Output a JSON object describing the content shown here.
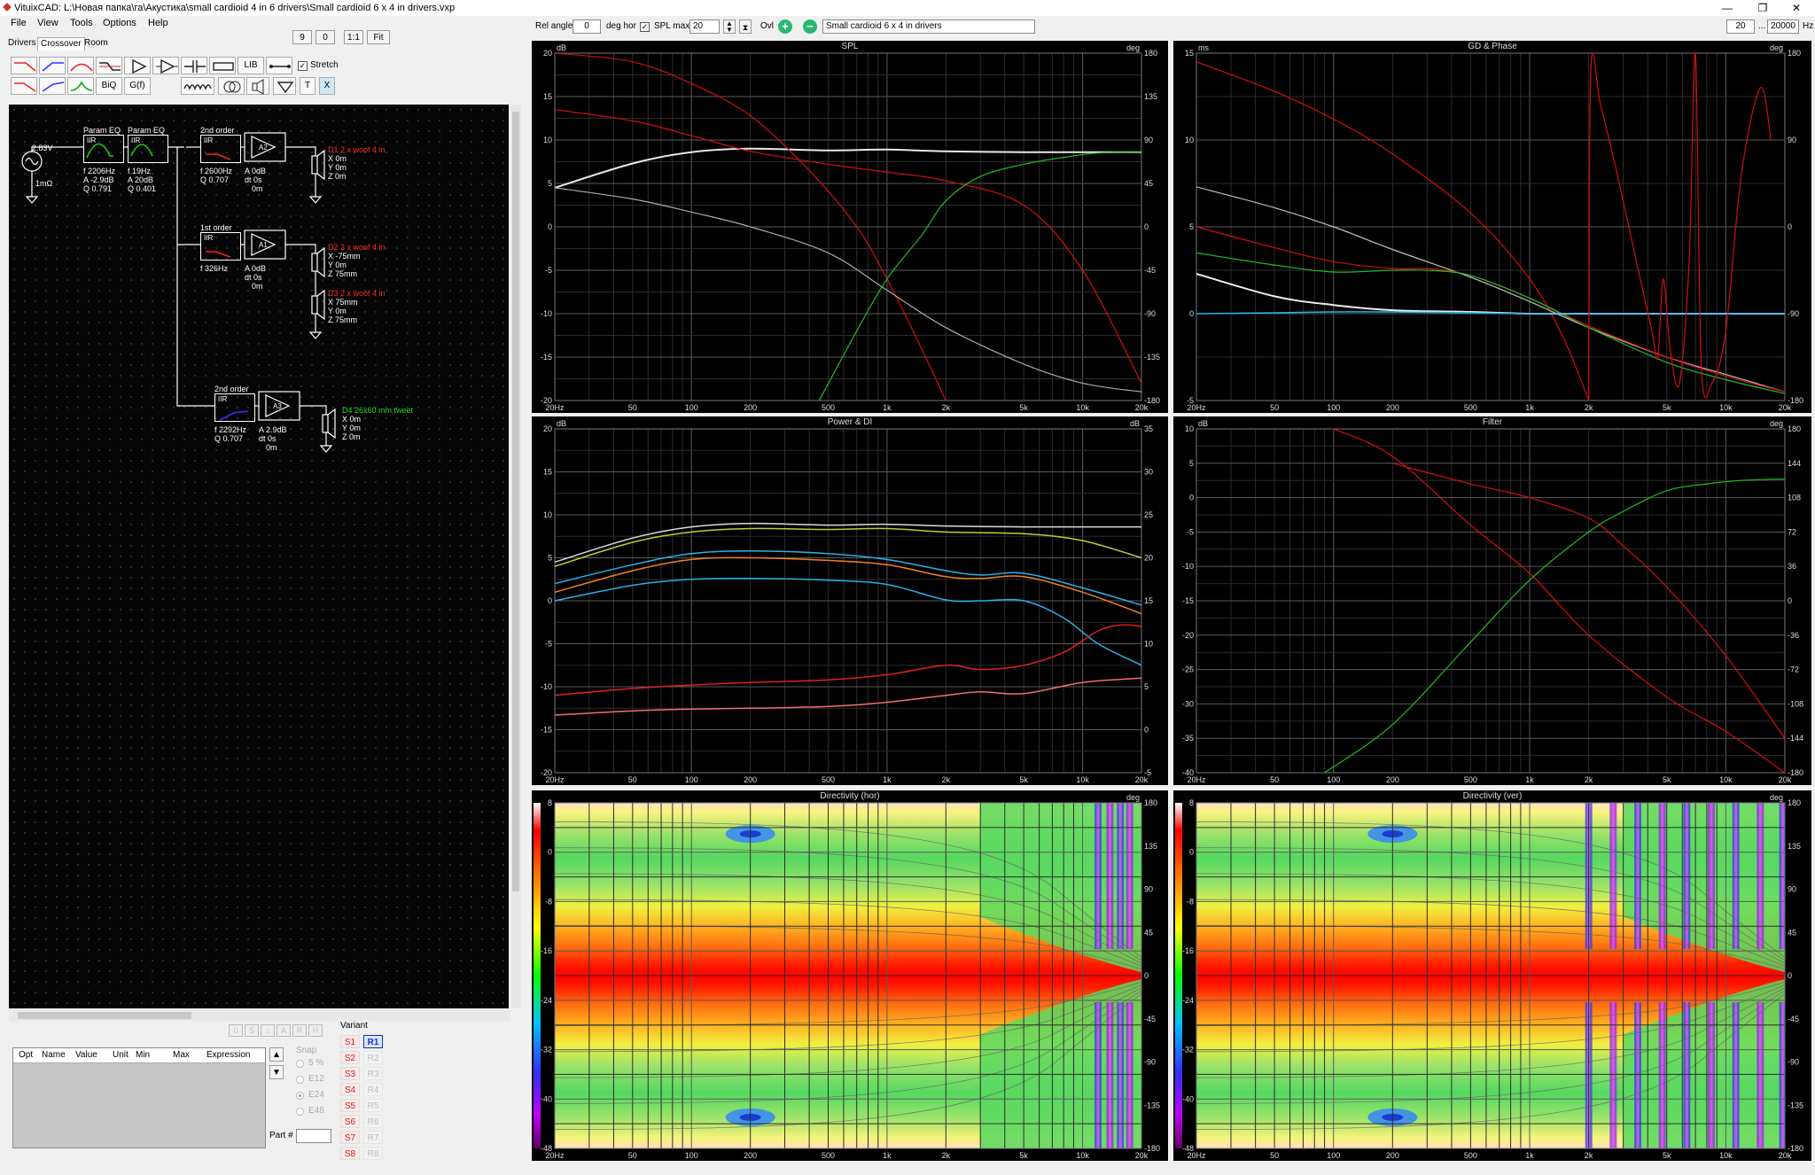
{
  "titlebar": {
    "title": "VituixCAD: L:\\Новая папка\\га\\Акустика\\small cardioid 4 in 6 drivers\\Small cardioid 6 x 4 in drivers.vxp",
    "minimize": "—",
    "restore": "❐",
    "close": "✕"
  },
  "menu": {
    "file": "File",
    "view": "View",
    "tools": "Tools",
    "options": "Options",
    "help": "Help"
  },
  "toolbar": {
    "zoom_9": "9",
    "zoom_0": "0",
    "zoom_11": "1:1",
    "zoom_fit": "Fit",
    "rel_angle_label": "Rel angle",
    "rel_angle_value": "0",
    "deg_hor_label": "deg hor",
    "spl_max_label": "SPL max",
    "spl_max_value": "20",
    "ovl_label": "Ovl",
    "overlay_name": "Small cardioid 6 x 4 in drivers",
    "freq_min": "20",
    "freq_sep": "...",
    "freq_max": "20000",
    "freq_unit": "Hz"
  },
  "tabs": [
    "Drivers",
    "Crossover",
    "Room"
  ],
  "palette": {
    "biq": "BiQ",
    "gf": "G(f)",
    "lib": "LIB",
    "t": "T",
    "x": "X",
    "stretch_label": "Stretch"
  },
  "schematic": {
    "source": {
      "voltage": "2.83V",
      "impedance": "1mΩ"
    },
    "peq1": {
      "title": "Param EQ",
      "type": "IIR",
      "f": "f   2206Hz",
      "a": "A  -2.9dB",
      "q": "Q  0.791"
    },
    "peq2": {
      "title": "Param EQ",
      "type": "IIR",
      "f": "f   19Hz",
      "a": "A  20dB",
      "q": "Q  0.401"
    },
    "filter_a": {
      "title": "2nd order",
      "type": "IIR",
      "f": "f   2600Hz",
      "q": "Q  0.707"
    },
    "amp_a": {
      "label": "A2",
      "a": "A  0dB",
      "dt": "dt 0s",
      "m": "0m"
    },
    "drv1": {
      "name": "D1 2 x woof 4 in",
      "x": "X  0m",
      "y": "Y  0m",
      "z": "Z  0m"
    },
    "filter_b": {
      "title": "1st order",
      "type": "IIR",
      "f": "f   326Hz"
    },
    "amp_b": {
      "label": "A1",
      "a": "A  0dB",
      "dt": "dt 0s",
      "m": "0m"
    },
    "drv2": {
      "name": "D2 2 x woof 4 in",
      "x": "X  -75mm",
      "y": "Y  0m",
      "z": "Z  75mm"
    },
    "drv3": {
      "name": "D3 2 x woof 4 in",
      "x": "X  75mm",
      "y": "Y  0m",
      "z": "Z  75mm"
    },
    "filter_c": {
      "title": "2nd order",
      "type": "IIR",
      "f": "f   2292Hz",
      "q": "Q  0.707"
    },
    "amp_c": {
      "label": "A3",
      "a": "A  2.9dB",
      "dt": "dt 0s",
      "m": "0m"
    },
    "drv4": {
      "name": "D4 26x60 mm tweet",
      "x": "X  0m",
      "y": "Y  0m",
      "z": "Z  0m"
    }
  },
  "opt_table": {
    "headers": [
      "Opt",
      "Name",
      "Value",
      "Unit",
      "Min",
      "Max",
      "Expression"
    ]
  },
  "opt_buttons": [
    "0",
    "S",
    "↕",
    "A",
    "R",
    "H"
  ],
  "snap": {
    "label": "Snap",
    "options": [
      "5 %",
      "E12",
      "E24",
      "E48"
    ],
    "selected": "E24"
  },
  "part_label": "Part #",
  "variant": {
    "label": "Variant",
    "s": [
      "S1",
      "S2",
      "S3",
      "S4",
      "S5",
      "S6",
      "S7",
      "S8"
    ],
    "r": [
      "R1",
      "R2",
      "R3",
      "R4",
      "R5",
      "R6",
      "R7",
      "R8"
    ],
    "active_r": "R1"
  },
  "colors": {
    "panel_bg": "#000000",
    "grid": "#3c3c3c",
    "red": "#e01010",
    "green": "#22bb22",
    "white": "#dddddd",
    "cyan": "#2ab0e8",
    "orange": "#f08020",
    "yellow_green": "#b8d030"
  },
  "freq_ticks": [
    "20Hz",
    "50",
    "100",
    "200",
    "500",
    "1k",
    "2k",
    "5k",
    "10k",
    "20k"
  ],
  "panels": [
    {
      "id": "spl",
      "title": "SPL",
      "left_unit": "dB",
      "right_unit": "deg",
      "left_ticks": [
        "20",
        "15",
        "10",
        "5",
        "0",
        "-5",
        "-10",
        "-15",
        "-20"
      ],
      "right_ticks": [
        "180",
        "135",
        "90",
        "45",
        "0",
        "-45",
        "-90",
        "-135",
        "-180"
      ],
      "y_range": [
        -20,
        20
      ],
      "series": [
        {
          "color": "#e8e8e8",
          "width": 2,
          "x": [
            20,
            50,
            100,
            200,
            500,
            1000,
            2000,
            5000,
            10000,
            20000
          ],
          "y": [
            4.5,
            7.3,
            8.6,
            9.0,
            8.8,
            8.9,
            8.7,
            8.6,
            8.6,
            8.6
          ]
        },
        {
          "color": "#d01010",
          "width": 1.2,
          "x": [
            20,
            50,
            100,
            200,
            500,
            1000,
            2000,
            5000,
            10000,
            20000
          ],
          "y": [
            13.5,
            12.2,
            10.5,
            8.7,
            7.2,
            6.3,
            5.3,
            2.5,
            -5.0,
            -18.0
          ]
        },
        {
          "color": "#d01010",
          "width": 1.2,
          "x": [
            20,
            50,
            100,
            200,
            400,
            700,
            1000,
            1500,
            2000
          ],
          "y": [
            20.0,
            19.0,
            16.5,
            12.8,
            6.5,
            0,
            -6,
            -14,
            -20
          ]
        },
        {
          "color": "#aaaaaa",
          "width": 1.2,
          "x": [
            20,
            50,
            100,
            200,
            500,
            1000,
            2000,
            5000,
            10000,
            20000
          ],
          "y": [
            4.5,
            3.2,
            1.7,
            0.0,
            -3.0,
            -7.3,
            -11.6,
            -15.8,
            -18.0,
            -19.0
          ]
        },
        {
          "color": "#22bb22",
          "width": 1.2,
          "x": [
            450,
            700,
            1000,
            1500,
            2000,
            3000,
            5000,
            8000,
            12000,
            20000
          ],
          "y": [
            -20,
            -12,
            -6,
            -1,
            3,
            5.8,
            7.2,
            8.0,
            8.5,
            8.6
          ]
        }
      ]
    },
    {
      "id": "gd",
      "title": "GD & Phase",
      "left_unit": "ms",
      "right_unit": "deg",
      "left_ticks": [
        "15",
        "10",
        "5",
        "0",
        "-5"
      ],
      "right_ticks": [
        "180",
        "90",
        "0",
        "-90",
        "-180"
      ],
      "y_range": [
        -5,
        15
      ],
      "series": [
        {
          "color": "#d01010",
          "width": 1.2,
          "x": [
            20,
            50,
            100,
            200,
            500,
            1000,
            1500,
            2000
          ],
          "y": [
            14.5,
            12.8,
            11.2,
            9.2,
            5.8,
            2.0,
            -1.5,
            -5.0
          ]
        },
        {
          "color": "#c0c0c0",
          "width": 1.2,
          "x": [
            20,
            50,
            100,
            200,
            500,
            1000,
            2000,
            5000,
            10000,
            20000
          ],
          "y": [
            7.3,
            6.1,
            5.0,
            3.7,
            2.1,
            0.7,
            -0.8,
            -2.5,
            -3.5,
            -4.5
          ]
        },
        {
          "color": "#d01010",
          "width": 1.2,
          "x": [
            20,
            50,
            100,
            200,
            300,
            500,
            1000,
            2000,
            5000,
            10000,
            20000
          ],
          "y": [
            5.0,
            3.8,
            3.0,
            2.6,
            2.6,
            2.2,
            0.9,
            -0.7,
            -2.5,
            -3.6,
            -4.5
          ]
        },
        {
          "color": "#22bb22",
          "width": 1.2,
          "x": [
            20,
            50,
            100,
            200,
            300,
            500,
            1000,
            2000,
            5000,
            10000,
            20000
          ],
          "y": [
            3.5,
            2.8,
            2.4,
            2.5,
            2.5,
            2.2,
            0.9,
            -0.8,
            -2.8,
            -3.8,
            -4.6
          ]
        },
        {
          "color": "#eeeeee",
          "width": 2,
          "x": [
            20,
            50,
            100,
            200,
            500,
            1000,
            2000,
            5000,
            10000,
            20000
          ],
          "y": [
            2.3,
            1.0,
            0.5,
            0.2,
            0.1,
            0.0,
            0.0,
            0.0,
            0.0,
            0.0
          ]
        },
        {
          "color": "#2ab0e8",
          "width": 1.5,
          "x": [
            20,
            50,
            100,
            200,
            500,
            1000,
            2000,
            5000,
            10000,
            20000
          ],
          "y": [
            0,
            0.05,
            0.1,
            0.1,
            0.05,
            0,
            0,
            0,
            0,
            0
          ]
        },
        {
          "color": "#d01010",
          "width": 1.2,
          "x": [
            2000,
            2050,
            2300,
            2800,
            3500,
            4200,
            4500,
            4800,
            5200,
            5800,
            6500,
            7000,
            7500,
            8500,
            10000,
            12000,
            15000,
            17000
          ],
          "y": [
            -5,
            14,
            12,
            8,
            3,
            -1,
            -2.5,
            2,
            -2,
            -4,
            3,
            15,
            -3,
            -4,
            -1,
            8,
            13,
            10
          ]
        }
      ]
    },
    {
      "id": "power",
      "title": "Power & DI",
      "left_unit": "dB",
      "right_unit": "dB",
      "left_ticks": [
        "20",
        "15",
        "10",
        "5",
        "0",
        "-5",
        "-10",
        "-15",
        "-20"
      ],
      "right_ticks": [
        "35",
        "30",
        "25",
        "20",
        "15",
        "10",
        "5",
        "0",
        "-5"
      ],
      "y_range": [
        -20,
        20
      ],
      "series": [
        {
          "color": "#dcdcdc",
          "width": 1.5,
          "x": [
            20,
            50,
            100,
            200,
            500,
            1000,
            2000,
            5000,
            10000,
            20000
          ],
          "y": [
            4.5,
            7.3,
            8.6,
            9.0,
            8.8,
            8.9,
            8.7,
            8.6,
            8.6,
            8.6
          ]
        },
        {
          "color": "#b8d030",
          "width": 1.5,
          "x": [
            20,
            50,
            100,
            200,
            500,
            1000,
            2000,
            5000,
            10000,
            20000
          ],
          "y": [
            4.0,
            6.8,
            8.0,
            8.4,
            8.3,
            8.4,
            8.0,
            7.8,
            7.0,
            5.0
          ]
        },
        {
          "color": "#2ab0e8",
          "width": 1.5,
          "x": [
            20,
            50,
            100,
            200,
            500,
            1000,
            2000,
            3000,
            5000,
            10000,
            20000
          ],
          "y": [
            2.0,
            4.2,
            5.5,
            5.8,
            5.5,
            4.8,
            3.5,
            3.0,
            3.2,
            1.5,
            -0.5
          ]
        },
        {
          "color": "#f08020",
          "width": 1.5,
          "x": [
            20,
            50,
            100,
            200,
            500,
            1000,
            2000,
            3000,
            5000,
            10000,
            20000
          ],
          "y": [
            1.0,
            3.5,
            4.8,
            5.0,
            4.7,
            4.2,
            2.8,
            2.6,
            2.8,
            1.0,
            -1.5
          ]
        },
        {
          "color": "#2ab0e8",
          "width": 1.5,
          "x": [
            20,
            50,
            100,
            200,
            500,
            1000,
            2000,
            3000,
            5000,
            8000,
            12000,
            20000
          ],
          "y": [
            0.0,
            1.8,
            2.5,
            2.6,
            2.4,
            1.9,
            0.1,
            0.0,
            0.0,
            -2.0,
            -5.0,
            -7.5
          ]
        },
        {
          "color": "#e02020",
          "width": 1.5,
          "x": [
            20,
            50,
            100,
            200,
            500,
            1000,
            2000,
            3000,
            5000,
            8000,
            12000,
            16000,
            20000
          ],
          "y": [
            -11,
            -10.2,
            -9.8,
            -9.5,
            -9.2,
            -8.6,
            -7.5,
            -8.0,
            -7.5,
            -6.0,
            -3.5,
            -2.8,
            -3.0
          ]
        },
        {
          "color": "#f07070",
          "width": 1.5,
          "x": [
            20,
            50,
            100,
            200,
            500,
            1000,
            2000,
            3000,
            5000,
            10000,
            20000
          ],
          "y": [
            -13.3,
            -12.8,
            -12.6,
            -12.5,
            -12.3,
            -11.8,
            -11.0,
            -10.6,
            -10.8,
            -9.5,
            -9.0
          ]
        }
      ]
    },
    {
      "id": "filter",
      "title": "Filter",
      "left_unit": "dB",
      "right_unit": "deg",
      "left_ticks": [
        "10",
        "5",
        "0",
        "-5",
        "-10",
        "-15",
        "-20",
        "-25",
        "-30",
        "-35",
        "-40"
      ],
      "right_ticks": [
        "180",
        "144",
        "108",
        "72",
        "36",
        "0",
        "-36",
        "-72",
        "-108",
        "-144",
        "-180"
      ],
      "y_range": [
        -40,
        10
      ],
      "series": [
        {
          "color": "#d01010",
          "width": 1.2,
          "x": [
            100,
            200,
            500,
            1000,
            2000,
            5000,
            10000,
            20000
          ],
          "y": [
            10,
            6,
            -4,
            -11,
            -20,
            -29,
            -34,
            -40
          ]
        },
        {
          "color": "#d01010",
          "width": 1.2,
          "x": [
            200,
            500,
            1000,
            2000,
            3000,
            5000,
            10000,
            20000
          ],
          "y": [
            5,
            2,
            0,
            -3,
            -7,
            -13,
            -23,
            -35
          ]
        },
        {
          "color": "#22bb22",
          "width": 1.2,
          "x": [
            90,
            200,
            500,
            1000,
            2000,
            3000,
            5000,
            8000,
            12000,
            20000
          ],
          "y": [
            -40,
            -33,
            -21,
            -12,
            -5,
            -2,
            1,
            2,
            2.5,
            2.7
          ]
        }
      ]
    },
    {
      "id": "dir_hor",
      "title": "Directivity (hor)",
      "right_unit": "deg",
      "left_ticks": [
        "8",
        "0",
        "-8",
        "-16",
        "-24",
        "-32",
        "-40",
        "-48"
      ],
      "right_ticks": [
        "180",
        "135",
        "90",
        "45",
        "0",
        "-45",
        "-90",
        "-135",
        "-180"
      ]
    },
    {
      "id": "dir_ver",
      "title": "Directivity (ver)",
      "right_unit": "deg",
      "left_ticks": [
        "8",
        "0",
        "-8",
        "-16",
        "-24",
        "-32",
        "-40",
        "-48"
      ],
      "right_ticks": [
        "180",
        "135",
        "90",
        "45",
        "0",
        "-45",
        "-90",
        "-135",
        "-180"
      ]
    }
  ]
}
